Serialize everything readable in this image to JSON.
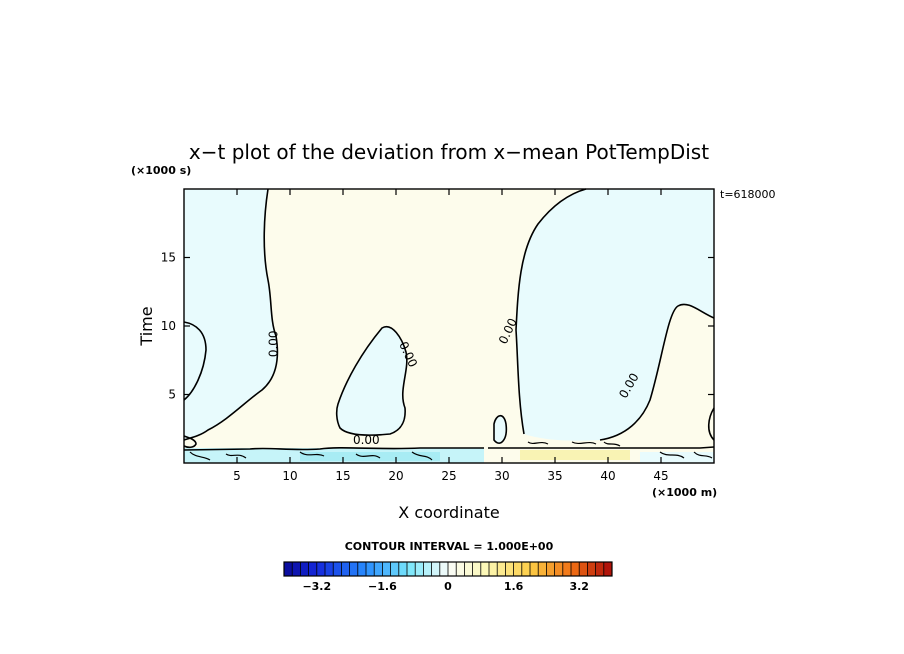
{
  "chart_data": {
    "type": "contour",
    "title": "x−t plot of the deviation from x−mean PotTempDist",
    "xlabel": "X coordinate",
    "ylabel": "Time",
    "x_unit": "(×1000 m)",
    "y_unit": "(×1000 s)",
    "time_stamp": "t=618000",
    "xlim": [
      0,
      50
    ],
    "ylim": [
      0,
      20
    ],
    "x_ticks": [
      5,
      10,
      15,
      20,
      25,
      30,
      35,
      40,
      45
    ],
    "y_ticks": [
      5,
      10,
      15
    ],
    "contour_interval_text": "CONTOUR INTERVAL = 1.000E+00",
    "contour_labels": [
      {
        "text": "0.00",
        "x": 8.8,
        "y": 8.7
      },
      {
        "text": "0.00",
        "x": 20.8,
        "y": 7.8
      },
      {
        "text": "0.00",
        "x": 30.9,
        "y": 9.5
      },
      {
        "text": "0.00",
        "x": 42.3,
        "y": 5.5
      },
      {
        "text": "0.00",
        "x": 17.2,
        "y": 1.4
      }
    ],
    "colorbar": {
      "min": -4.0,
      "max": 4.0,
      "tick_labels": [
        "−3.2",
        "−1.6",
        "0",
        "1.6",
        "3.2"
      ],
      "tick_values": [
        -3.2,
        -1.6,
        0,
        1.6,
        3.2
      ]
    },
    "colors": {
      "positive_fill": "#fdfcec",
      "negative_fill": "#e8fbfd",
      "strong_positive": "#f9f3b4",
      "strong_negative": "#a8ecf4"
    }
  }
}
